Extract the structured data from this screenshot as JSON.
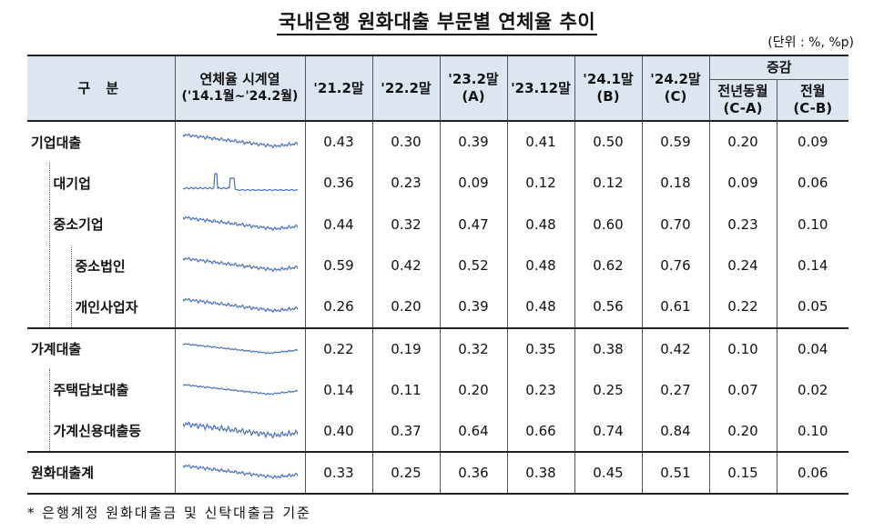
{
  "title": "국내은행 원화대출 부문별 연체율 추이",
  "unit": "(단위 : %, %p)",
  "footnote": "* 은행계정 원화대출금 및 신탁대출금 기준",
  "header": {
    "category": "구  분",
    "sparkline_line1": "연체율 시계열",
    "sparkline_line2": "('14.1월~'24.2월)",
    "cols": [
      {
        "line1": "'21.2말",
        "line2": ""
      },
      {
        "line1": "'22.2말",
        "line2": ""
      },
      {
        "line1": "'23.2말",
        "line2": "(A)"
      },
      {
        "line1": "'23.12말",
        "line2": ""
      },
      {
        "line1": "'24.1말",
        "line2": "(B)"
      },
      {
        "line1": "'24.2말",
        "line2": "(C)"
      }
    ],
    "change_group": "증감",
    "change_cols": [
      {
        "line1": "전년동월",
        "line2": "(C-A)"
      },
      {
        "line1": "전월",
        "line2": "(C-B)"
      }
    ]
  },
  "rows": [
    {
      "label": "기업대출",
      "level": 0,
      "values": [
        "0.43",
        "0.30",
        "0.39",
        "0.41",
        "0.50",
        "0.59",
        "0.20",
        "0.09"
      ]
    },
    {
      "label": "대기업",
      "level": 1,
      "values": [
        "0.36",
        "0.23",
        "0.09",
        "0.12",
        "0.12",
        "0.18",
        "0.09",
        "0.06"
      ]
    },
    {
      "label": "중소기업",
      "level": 1,
      "values": [
        "0.44",
        "0.32",
        "0.47",
        "0.48",
        "0.60",
        "0.70",
        "0.23",
        "0.10"
      ]
    },
    {
      "label": "중소법인",
      "level": 2,
      "values": [
        "0.59",
        "0.42",
        "0.52",
        "0.48",
        "0.62",
        "0.76",
        "0.24",
        "0.14"
      ]
    },
    {
      "label": "개인사업자",
      "level": 2,
      "values": [
        "0.26",
        "0.20",
        "0.39",
        "0.48",
        "0.56",
        "0.61",
        "0.22",
        "0.05"
      ]
    },
    {
      "label": "가계대출",
      "level": 0,
      "values": [
        "0.22",
        "0.19",
        "0.32",
        "0.35",
        "0.38",
        "0.42",
        "0.10",
        "0.04"
      ]
    },
    {
      "label": "주택담보대출",
      "level": 1,
      "values": [
        "0.14",
        "0.11",
        "0.20",
        "0.23",
        "0.25",
        "0.27",
        "0.07",
        "0.02"
      ]
    },
    {
      "label": "가계신용대출등",
      "level": 1,
      "values": [
        "0.40",
        "0.37",
        "0.64",
        "0.66",
        "0.74",
        "0.84",
        "0.20",
        "0.10"
      ]
    },
    {
      "label": "원화대출계",
      "level": 0,
      "values": [
        "0.33",
        "0.25",
        "0.36",
        "0.38",
        "0.45",
        "0.51",
        "0.15",
        "0.06"
      ]
    }
  ],
  "sparkline_color": "#4a6fb5"
}
